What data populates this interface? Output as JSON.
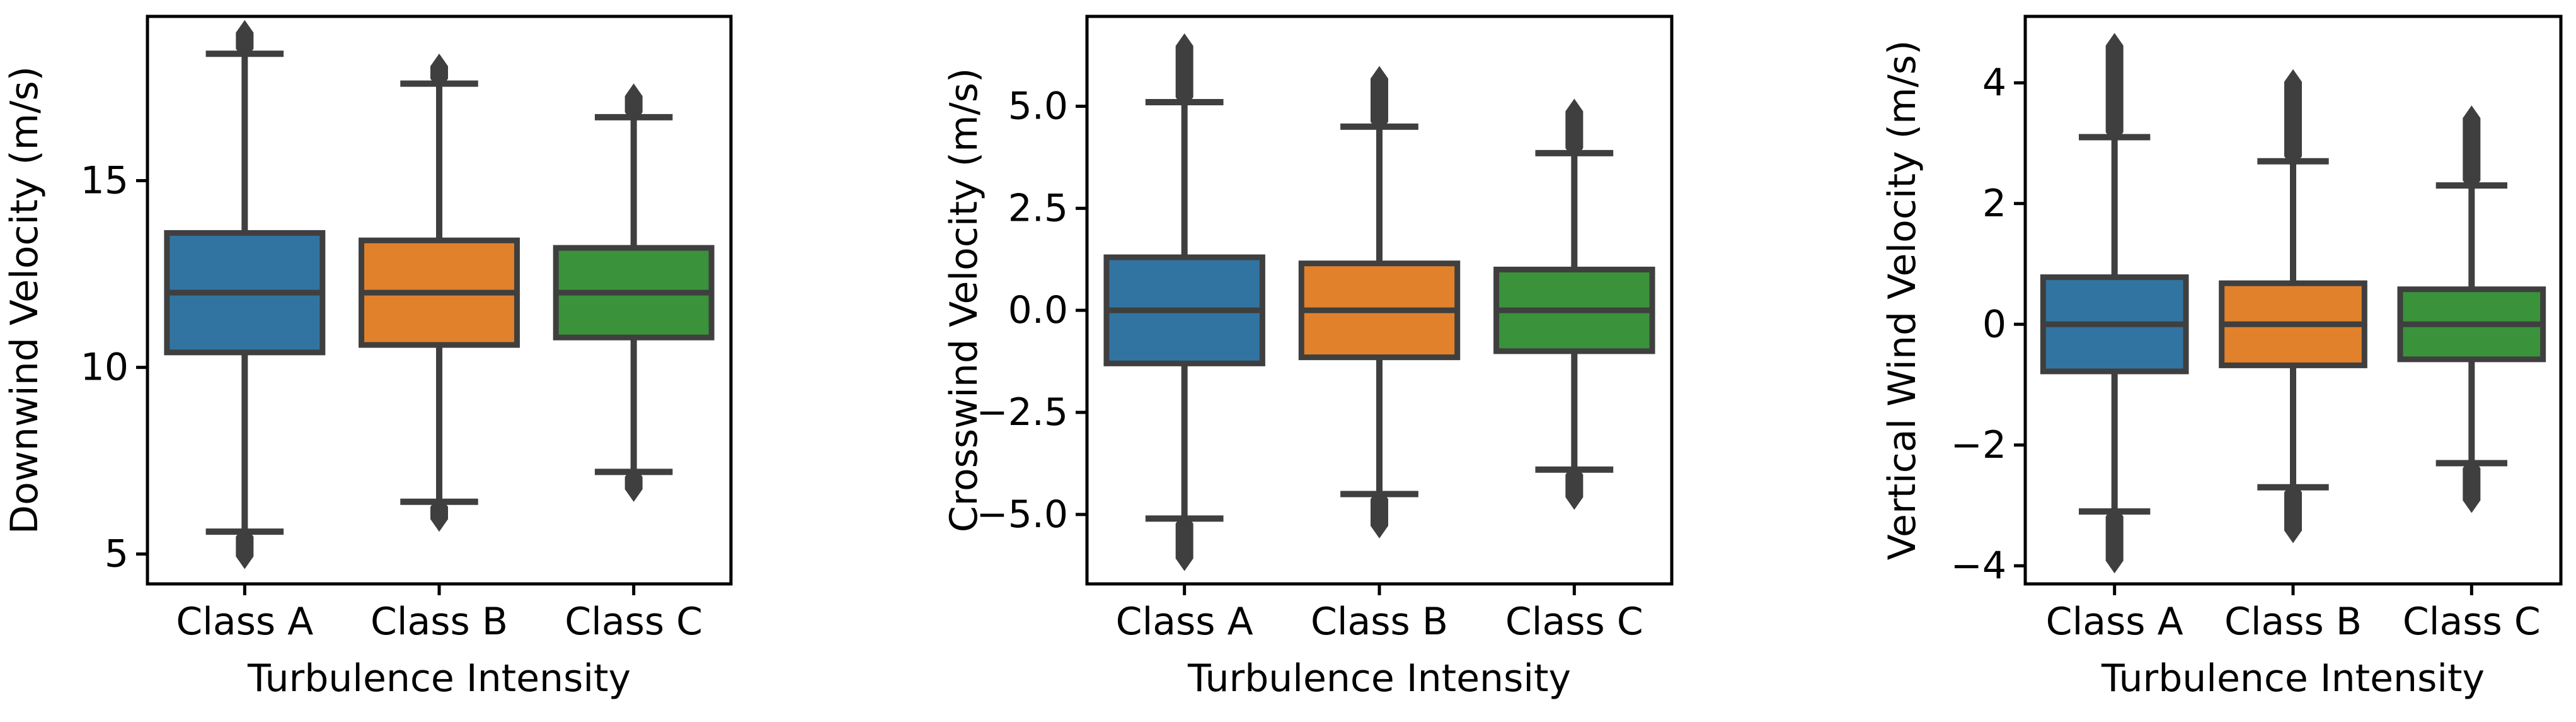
{
  "colors": {
    "Class A": "#3274a1",
    "Class B": "#e1812c",
    "Class C": "#3a923a",
    "edge": "#3f3f3f"
  },
  "chart_data": [
    {
      "type": "box",
      "xlabel": "Turbulence Intensity",
      "ylabel": "Downwind Velocity (m/s)",
      "categories": [
        "Class A",
        "Class B",
        "Class C"
      ],
      "ylim": [
        4.2,
        19.4
      ],
      "yticks": [
        5,
        10,
        15
      ],
      "ytick_labels": [
        "5",
        "10",
        "15"
      ],
      "boxes": [
        {
          "label": "Class A",
          "q1": 10.4,
          "median": 12.0,
          "q3": 13.6,
          "whislo": 5.6,
          "whishi": 18.4,
          "fliers_min": 4.8,
          "fliers_max": 19.1
        },
        {
          "label": "Class B",
          "q1": 10.6,
          "median": 12.0,
          "q3": 13.4,
          "whislo": 6.4,
          "whishi": 17.6,
          "fliers_min": 5.8,
          "fliers_max": 18.2
        },
        {
          "label": "Class C",
          "q1": 10.8,
          "median": 12.0,
          "q3": 13.2,
          "whislo": 7.2,
          "whishi": 16.7,
          "fliers_min": 6.6,
          "fliers_max": 17.4
        }
      ]
    },
    {
      "type": "box",
      "xlabel": "Turbulence Intensity",
      "ylabel": "Crosswind Velocity (m/s)",
      "categories": [
        "Class A",
        "Class B",
        "Class C"
      ],
      "ylim": [
        -6.7,
        7.2
      ],
      "yticks": [
        -5.0,
        -2.5,
        0.0,
        2.5,
        5.0
      ],
      "ytick_labels": [
        "−5.0",
        "−2.5",
        "0.0",
        "2.5",
        "5.0"
      ],
      "boxes": [
        {
          "label": "Class A",
          "q1": -1.3,
          "median": 0.0,
          "q3": 1.3,
          "whislo": -5.1,
          "whishi": 5.1,
          "fliers_min": -6.2,
          "fliers_max": 6.6
        },
        {
          "label": "Class B",
          "q1": -1.15,
          "median": 0.0,
          "q3": 1.15,
          "whislo": -4.5,
          "whishi": 4.5,
          "fliers_min": -5.4,
          "fliers_max": 5.8
        },
        {
          "label": "Class C",
          "q1": -1.0,
          "median": 0.0,
          "q3": 1.0,
          "whislo": -3.9,
          "whishi": 3.85,
          "fliers_min": -4.7,
          "fliers_max": 5.0
        }
      ]
    },
    {
      "type": "box",
      "xlabel": "Turbulence Intensity",
      "ylabel": "Vertical Wind Velocity (m/s)",
      "categories": [
        "Class A",
        "Class B",
        "Class C"
      ],
      "ylim": [
        -4.3,
        5.1
      ],
      "yticks": [
        -4,
        -2,
        0,
        2,
        4
      ],
      "ytick_labels": [
        "−4",
        "−2",
        "0",
        "2",
        "4"
      ],
      "boxes": [
        {
          "label": "Class A",
          "q1": -0.78,
          "median": 0.0,
          "q3": 0.78,
          "whislo": -3.1,
          "whishi": 3.1,
          "fliers_min": -4.0,
          "fliers_max": 4.7
        },
        {
          "label": "Class B",
          "q1": -0.68,
          "median": 0.0,
          "q3": 0.68,
          "whislo": -2.7,
          "whishi": 2.7,
          "fliers_min": -3.5,
          "fliers_max": 4.1
        },
        {
          "label": "Class C",
          "q1": -0.58,
          "median": 0.0,
          "q3": 0.58,
          "whislo": -2.3,
          "whishi": 2.3,
          "fliers_min": -3.0,
          "fliers_max": 3.5
        }
      ]
    }
  ]
}
